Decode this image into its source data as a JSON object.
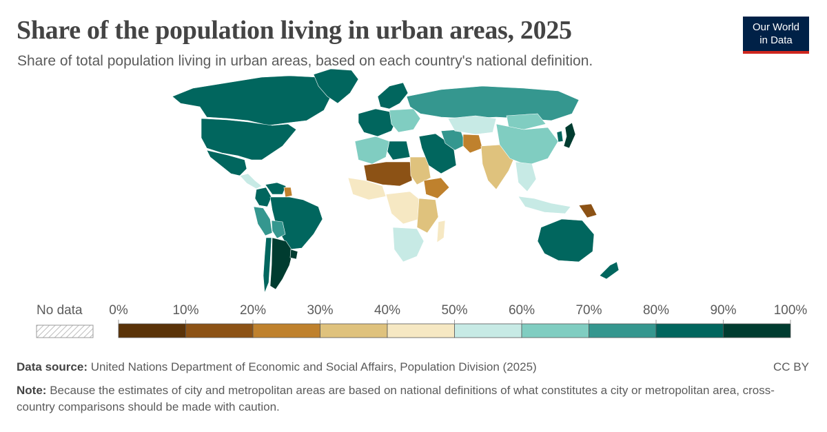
{
  "header": {
    "title": "Share of the population living in urban areas, 2025",
    "subtitle": "Share of total population living in urban areas, based on each country's national definition."
  },
  "logo": {
    "line1": "Our World",
    "line2": "in Data",
    "bg": "#002147",
    "accent": "#ce261e"
  },
  "legend": {
    "no_data_label": "No data",
    "ticks": [
      "0%",
      "10%",
      "20%",
      "30%",
      "40%",
      "50%",
      "60%",
      "70%",
      "80%",
      "90%",
      "100%"
    ],
    "bins": [
      {
        "from": 0,
        "to": 10,
        "color": "#5a3308"
      },
      {
        "from": 10,
        "to": 20,
        "color": "#8c5215"
      },
      {
        "from": 20,
        "to": 30,
        "color": "#bf812d"
      },
      {
        "from": 30,
        "to": 40,
        "color": "#dfc27d"
      },
      {
        "from": 40,
        "to": 50,
        "color": "#f6e8c3"
      },
      {
        "from": 50,
        "to": 60,
        "color": "#c7eae5"
      },
      {
        "from": 60,
        "to": 70,
        "color": "#80cdc1"
      },
      {
        "from": 70,
        "to": 80,
        "color": "#35978f"
      },
      {
        "from": 80,
        "to": 90,
        "color": "#01665e"
      },
      {
        "from": 90,
        "to": 100,
        "color": "#003c30"
      }
    ]
  },
  "footer": {
    "source_label": "Data source:",
    "source_text": "United Nations Department of Economic and Social Affairs, Population Division (2025)",
    "license": "CC BY",
    "note_label": "Note:",
    "note_text": "Because the estimates of city and metropolitan areas are based on national definitions of what constitutes a city or metropolitan area, cross-country comparisons should be made with caution."
  },
  "map_regions": [
    {
      "name": "canada",
      "value": 82
    },
    {
      "name": "united-states",
      "value": 83
    },
    {
      "name": "greenland",
      "value": 88
    },
    {
      "name": "mexico",
      "value": 81
    },
    {
      "name": "central-america",
      "value": 58
    },
    {
      "name": "venezuela",
      "value": 88
    },
    {
      "name": "guyana",
      "value": 27
    },
    {
      "name": "brazil",
      "value": 88
    },
    {
      "name": "colombia",
      "value": 82
    },
    {
      "name": "peru",
      "value": 79
    },
    {
      "name": "bolivia",
      "value": 71
    },
    {
      "name": "chile",
      "value": 88
    },
    {
      "name": "argentina",
      "value": 92
    },
    {
      "name": "uruguay",
      "value": 96
    },
    {
      "name": "western-europe",
      "value": 80
    },
    {
      "name": "scandinavia",
      "value": 86
    },
    {
      "name": "eastern-europe",
      "value": 62
    },
    {
      "name": "russia",
      "value": 75
    },
    {
      "name": "north-africa",
      "value": 64
    },
    {
      "name": "libya",
      "value": 81
    },
    {
      "name": "sahel",
      "value": 18
    },
    {
      "name": "west-africa",
      "value": 42
    },
    {
      "name": "sudan",
      "value": 36
    },
    {
      "name": "ethiopia",
      "value": 23
    },
    {
      "name": "central-africa",
      "value": 47
    },
    {
      "name": "east-africa",
      "value": 31
    },
    {
      "name": "southern-africa",
      "value": 55
    },
    {
      "name": "madagascar",
      "value": 40
    },
    {
      "name": "middle-east",
      "value": 80
    },
    {
      "name": "iran",
      "value": 78
    },
    {
      "name": "afghanistan",
      "value": 27
    },
    {
      "name": "central-asia",
      "value": 52
    },
    {
      "name": "india",
      "value": 37
    },
    {
      "name": "china",
      "value": 67
    },
    {
      "name": "mongolia",
      "value": 69
    },
    {
      "name": "southeast-asia",
      "value": 53
    },
    {
      "name": "japan",
      "value": 92
    },
    {
      "name": "korea",
      "value": 81
    },
    {
      "name": "indonesia",
      "value": 59
    },
    {
      "name": "papua-new-guinea",
      "value": 14
    },
    {
      "name": "australia",
      "value": 86
    },
    {
      "name": "new-zealand",
      "value": 87
    }
  ]
}
